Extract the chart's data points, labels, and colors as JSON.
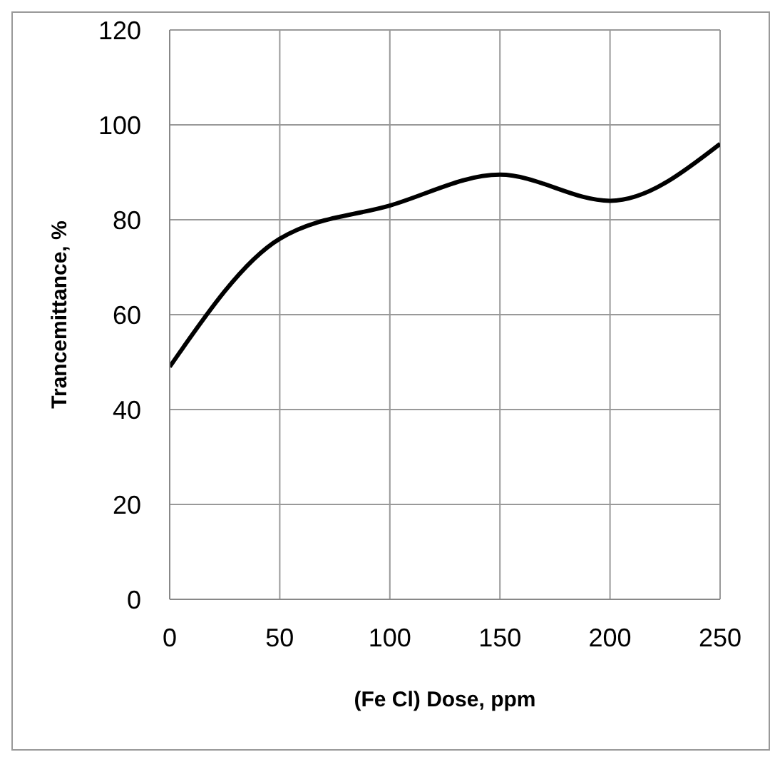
{
  "chart_data": {
    "type": "line",
    "xlabel": "(Fe Cl) Dose, ppm",
    "ylabel": "Trancemittance, %",
    "x": [
      0,
      50,
      100,
      150,
      200,
      250
    ],
    "series": [
      {
        "color": "#000000",
        "values": [
          49,
          76,
          83,
          89.5,
          84,
          96
        ]
      }
    ],
    "xlim": [
      0,
      250
    ],
    "xticks": [
      0,
      50,
      100,
      150,
      200,
      250
    ],
    "ylim": [
      0,
      120
    ],
    "yticks": [
      0,
      20,
      40,
      60,
      80,
      100,
      120
    ],
    "grid": true,
    "marker": "none",
    "line_style": "solid"
  }
}
